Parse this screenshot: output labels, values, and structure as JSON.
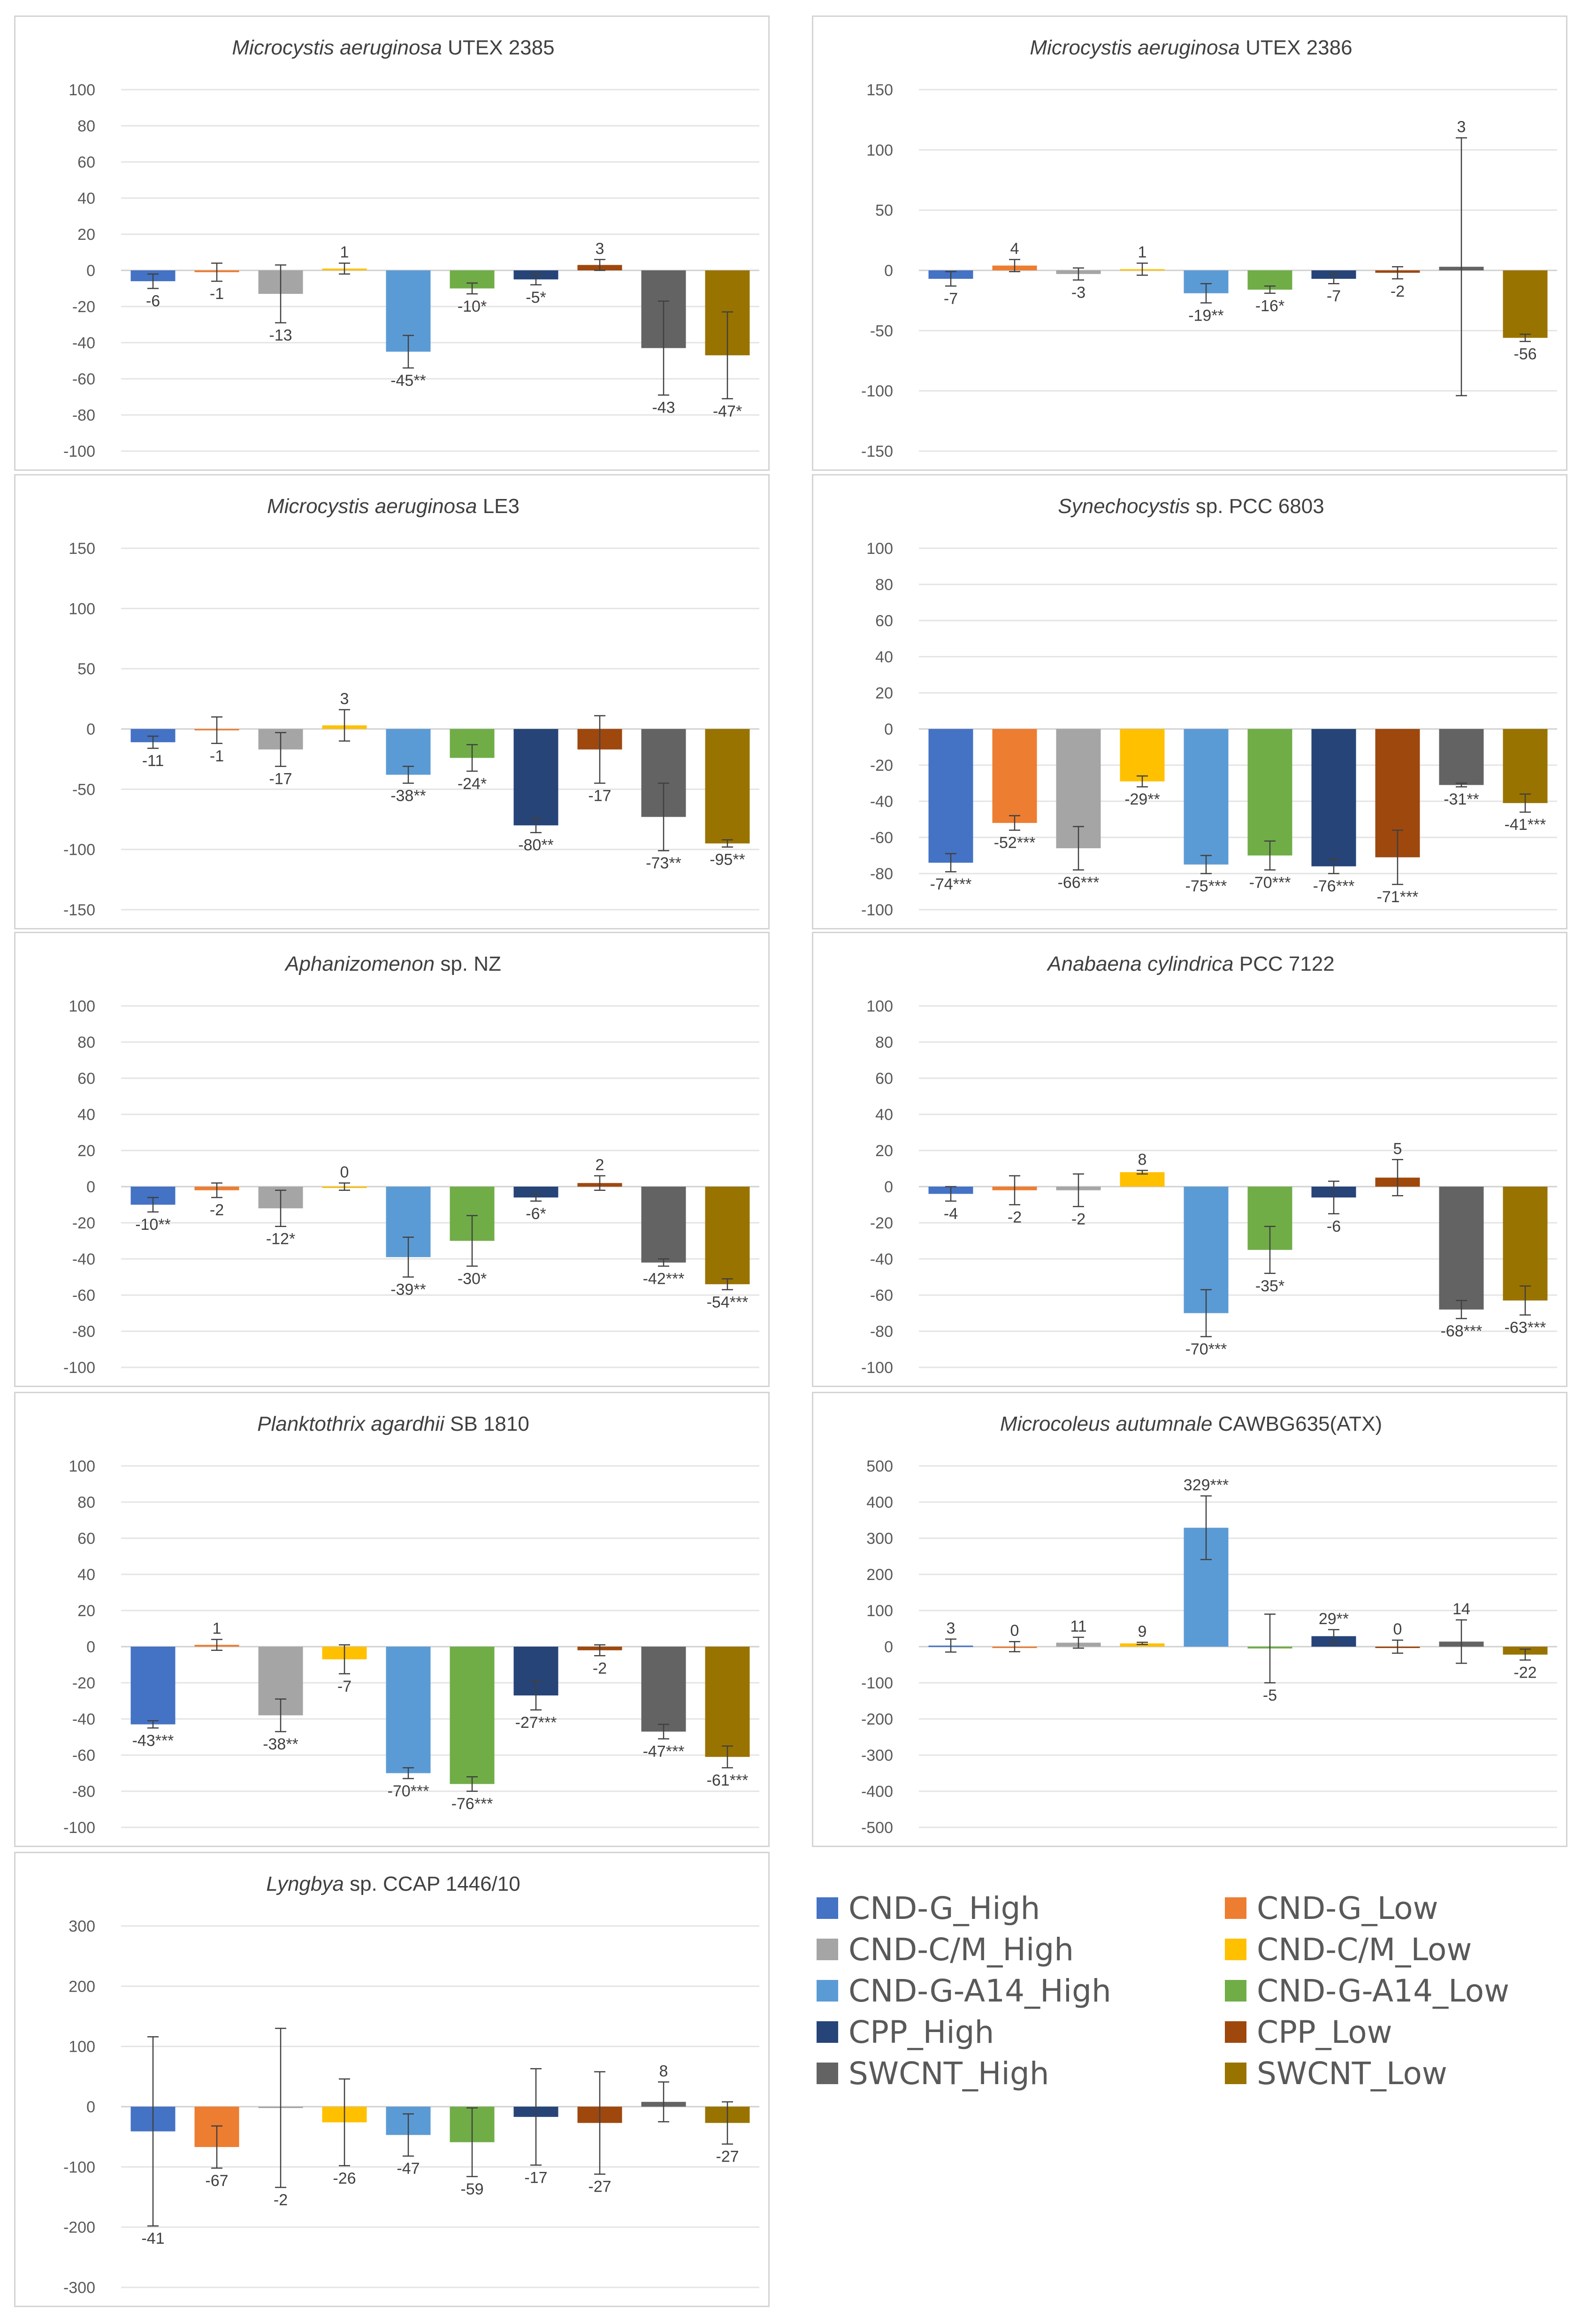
{
  "series_colors": [
    "#4472C4",
    "#ED7D31",
    "#A5A5A5",
    "#FFC000",
    "#5B9BD5",
    "#70AD47",
    "#264478",
    "#9E480E",
    "#636363",
    "#997300"
  ],
  "legend": {
    "items": [
      {
        "label": "CND-G_High",
        "color": "#4472C4"
      },
      {
        "label": "CND-G_Low",
        "color": "#ED7D31"
      },
      {
        "label": "CND-C/M_High",
        "color": "#A5A5A5"
      },
      {
        "label": "CND-C/M_Low",
        "color": "#FFC000"
      },
      {
        "label": "CND-G-A14_High",
        "color": "#5B9BD5"
      },
      {
        "label": "CND-G-A14_Low",
        "color": "#70AD47"
      },
      {
        "label": "CPP_High",
        "color": "#264478"
      },
      {
        "label": "CPP_Low",
        "color": "#9E480E"
      },
      {
        "label": "SWCNT_High",
        "color": "#636363"
      },
      {
        "label": "SWCNT_Low",
        "color": "#997300"
      }
    ]
  },
  "chart_data": [
    {
      "type": "bar",
      "title": {
        "italic": "Microcystis aeruginosa",
        "rest": " UTEX 2385"
      },
      "ylim": [
        -100,
        100
      ],
      "yticks": [
        -100,
        -80,
        -60,
        -40,
        -20,
        0,
        20,
        40,
        60,
        80,
        100
      ],
      "categories": [
        "CND-G_High",
        "CND-G_Low",
        "CND-C/M_High",
        "CND-C/M_Low",
        "CND-G-A14_High",
        "CND-G-A14_Low",
        "CPP_High",
        "CPP_Low",
        "SWCNT_High",
        "SWCNT_Low"
      ],
      "values": [
        -6,
        -1,
        -13,
        1,
        -45,
        -10,
        -5,
        3,
        -43,
        -47
      ],
      "errors": [
        4,
        5,
        16,
        3,
        9,
        3,
        3,
        3,
        26,
        24
      ],
      "labels": [
        "-6",
        "-1",
        "-13",
        "1",
        "-45**",
        "-10*",
        "-5*",
        "3",
        "-43",
        "-47*"
      ]
    },
    {
      "type": "bar",
      "title": {
        "italic": "Microcystis aeruginosa",
        "rest": " UTEX 2386"
      },
      "ylim": [
        -150,
        150
      ],
      "yticks": [
        -150,
        -100,
        -50,
        0,
        50,
        100,
        150
      ],
      "categories": [
        "CND-G_High",
        "CND-G_Low",
        "CND-C/M_High",
        "CND-C/M_Low",
        "CND-G-A14_High",
        "CND-G-A14_Low",
        "CPP_High",
        "CPP_Low",
        "SWCNT_High",
        "SWCNT_Low"
      ],
      "values": [
        -7,
        4,
        -3,
        1,
        -19,
        -16,
        -7,
        -2,
        3,
        -56
      ],
      "errors": [
        6,
        5,
        5,
        5,
        8,
        3,
        4,
        5,
        107,
        3
      ],
      "labels": [
        "-7",
        "4",
        "-3",
        "1",
        "-19**",
        "-16*",
        "-7",
        "-2",
        "3",
        "-56"
      ]
    },
    {
      "type": "bar",
      "title": {
        "italic": "Microcystis aeruginosa",
        "rest": " LE3"
      },
      "ylim": [
        -150,
        150
      ],
      "yticks": [
        -150,
        -100,
        -50,
        0,
        50,
        100,
        150
      ],
      "categories": [
        "CND-G_High",
        "CND-G_Low",
        "CND-C/M_High",
        "CND-C/M_Low",
        "CND-G-A14_High",
        "CND-G-A14_Low",
        "CPP_High",
        "CPP_Low",
        "SWCNT_High",
        "SWCNT_Low"
      ],
      "values": [
        -11,
        -1,
        -17,
        3,
        -38,
        -24,
        -80,
        -17,
        -73,
        -95
      ],
      "errors": [
        5,
        11,
        14,
        13,
        7,
        11,
        6,
        28,
        28,
        3
      ],
      "labels": [
        "-11",
        "-1",
        "-17",
        "3",
        "-38**",
        "-24*",
        "-80**",
        "-17",
        "-73**",
        "-95**"
      ]
    },
    {
      "type": "bar",
      "title": {
        "italic": "Synechocystis",
        "rest": " sp. PCC 6803"
      },
      "ylim": [
        -100,
        100
      ],
      "yticks": [
        -100,
        -80,
        -60,
        -40,
        -20,
        0,
        20,
        40,
        60,
        80,
        100
      ],
      "categories": [
        "CND-G_High",
        "CND-G_Low",
        "CND-C/M_High",
        "CND-C/M_Low",
        "CND-G-A14_High",
        "CND-G-A14_Low",
        "CPP_High",
        "CPP_Low",
        "SWCNT_High",
        "SWCNT_Low"
      ],
      "values": [
        -74,
        -52,
        -66,
        -29,
        -75,
        -70,
        -76,
        -71,
        -31,
        -41
      ],
      "errors": [
        5,
        4,
        12,
        3,
        5,
        8,
        4,
        15,
        1,
        5
      ],
      "labels": [
        "-74***",
        "-52***",
        "-66***",
        "-29**",
        "-75***",
        "-70***",
        "-76***",
        "-71***",
        "-31**",
        "-41***"
      ]
    },
    {
      "type": "bar",
      "title": {
        "italic": "Aphanizomenon",
        "rest": " sp. NZ"
      },
      "ylim": [
        -100,
        100
      ],
      "yticks": [
        -100,
        -80,
        -60,
        -40,
        -20,
        0,
        20,
        40,
        60,
        80,
        100
      ],
      "categories": [
        "CND-G_High",
        "CND-G_Low",
        "CND-C/M_High",
        "CND-C/M_Low",
        "CND-G-A14_High",
        "CND-G-A14_Low",
        "CPP_High",
        "CPP_Low",
        "SWCNT_High",
        "SWCNT_Low"
      ],
      "values": [
        -10,
        -2,
        -12,
        0,
        -39,
        -30,
        -6,
        2,
        -42,
        -54
      ],
      "errors": [
        4,
        4,
        10,
        2,
        11,
        14,
        2,
        4,
        2,
        3
      ],
      "labels": [
        "-10**",
        "-2",
        "-12*",
        "0",
        "-39**",
        "-30*",
        "-6*",
        "2",
        "-42***",
        "-54***"
      ]
    },
    {
      "type": "bar",
      "title": {
        "italic": "Anabaena cylindrica",
        "rest": " PCC 7122"
      },
      "ylim": [
        -100,
        100
      ],
      "yticks": [
        -100,
        -80,
        -60,
        -40,
        -20,
        0,
        20,
        40,
        60,
        80,
        100
      ],
      "categories": [
        "CND-G_High",
        "CND-G_Low",
        "CND-C/M_High",
        "CND-C/M_Low",
        "CND-G-A14_High",
        "CND-G-A14_Low",
        "CPP_High",
        "CPP_Low",
        "SWCNT_High",
        "SWCNT_Low"
      ],
      "values": [
        -4,
        -2,
        -2,
        8,
        -70,
        -35,
        -6,
        5,
        -68,
        -63
      ],
      "errors": [
        4,
        8,
        9,
        1,
        13,
        13,
        9,
        10,
        5,
        8
      ],
      "labels": [
        "-4",
        "-2",
        "-2",
        "8",
        "-70***",
        "-35*",
        "-6",
        "5",
        "-68***",
        "-63***"
      ]
    },
    {
      "type": "bar",
      "title": {
        "italic": "Planktothrix agardhii",
        "rest": " SB 1810"
      },
      "ylim": [
        -100,
        100
      ],
      "yticks": [
        -100,
        -80,
        -60,
        -40,
        -20,
        0,
        20,
        40,
        60,
        80,
        100
      ],
      "categories": [
        "CND-G_High",
        "CND-G_Low",
        "CND-C/M_High",
        "CND-C/M_Low",
        "CND-G-A14_High",
        "CND-G-A14_Low",
        "CPP_High",
        "CPP_Low",
        "SWCNT_High",
        "SWCNT_Low"
      ],
      "values": [
        -43,
        1,
        -38,
        -7,
        -70,
        -76,
        -27,
        -2,
        -47,
        -61
      ],
      "errors": [
        2,
        3,
        9,
        8,
        3,
        4,
        8,
        3,
        4,
        6
      ],
      "labels": [
        "-43***",
        "1",
        "-38**",
        "-7",
        "-70***",
        "-76***",
        "-27***",
        "-2",
        "-47***",
        "-61***"
      ]
    },
    {
      "type": "bar",
      "title": {
        "italic": "Microcoleus autumnale",
        "rest": " CAWBG635(ATX)"
      },
      "ylim": [
        -500,
        500
      ],
      "yticks": [
        -500,
        -400,
        -300,
        -200,
        -100,
        0,
        100,
        200,
        300,
        400,
        500
      ],
      "categories": [
        "CND-G_High",
        "CND-G_Low",
        "CND-C/M_High",
        "CND-C/M_Low",
        "CND-G-A14_High",
        "CND-G-A14_Low",
        "CPP_High",
        "CPP_Low",
        "SWCNT_High",
        "SWCNT_Low"
      ],
      "values": [
        3,
        0,
        11,
        9,
        329,
        -5,
        29,
        0,
        14,
        -22
      ],
      "errors": [
        18,
        14,
        15,
        3,
        88,
        95,
        18,
        18,
        60,
        15
      ],
      "labels": [
        "3",
        "0",
        "11",
        "9",
        "329***",
        "-5",
        "29**",
        "0",
        "14",
        "-22"
      ]
    },
    {
      "type": "bar",
      "title": {
        "italic": "Lyngbya",
        "rest": " sp. CCAP 1446/10"
      },
      "ylim": [
        -300,
        300
      ],
      "yticks": [
        -300,
        -200,
        -100,
        0,
        100,
        200,
        300
      ],
      "categories": [
        "CND-G_High",
        "CND-G_Low",
        "CND-C/M_High",
        "CND-C/M_Low",
        "CND-G-A14_High",
        "CND-G-A14_Low",
        "CPP_High",
        "CPP_Low",
        "SWCNT_High",
        "SWCNT_Low"
      ],
      "values": [
        -41,
        -67,
        -2,
        -26,
        -47,
        -59,
        -17,
        -27,
        8,
        -27
      ],
      "errors": [
        157,
        35,
        132,
        72,
        35,
        57,
        80,
        85,
        33,
        35
      ],
      "labels": [
        "-41",
        "-67",
        "-2",
        "-26",
        "-47",
        "-59",
        "-17",
        "-27",
        "8",
        "-27"
      ]
    }
  ]
}
